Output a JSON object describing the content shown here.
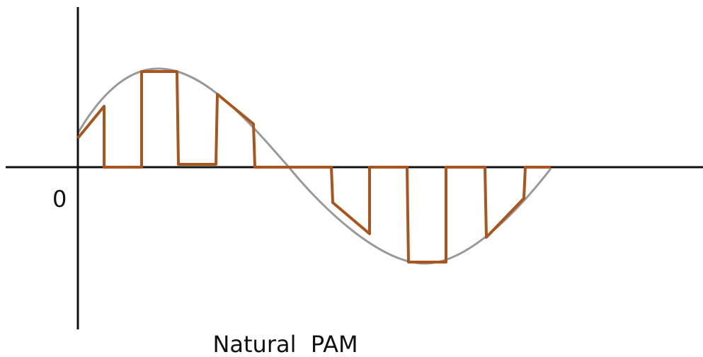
{
  "labels": {
    "origin": "0",
    "caption": "Natural  PAM"
  }
}
